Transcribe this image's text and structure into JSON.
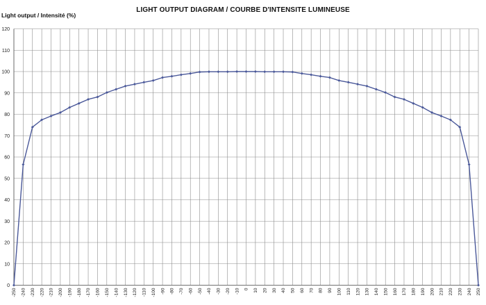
{
  "chart_data": {
    "type": "line",
    "title": "LIGHT OUTPUT DIAGRAM / COURBE D'INTENSITE LUMINEUSE",
    "ylabel": "Light output / Intensité (%)",
    "xlabel": "",
    "ylim": [
      0,
      120
    ],
    "yticks": [
      0,
      10,
      20,
      30,
      40,
      50,
      60,
      70,
      80,
      90,
      100,
      110,
      120
    ],
    "grid": "horizontal and vertical",
    "x": [
      -250,
      -240,
      -230,
      -220,
      -210,
      -200,
      -190,
      -180,
      -170,
      -160,
      -150,
      -140,
      -130,
      -120,
      -110,
      -100,
      -90,
      -80,
      -70,
      -60,
      -50,
      -40,
      -30,
      -20,
      -10,
      0,
      10,
      20,
      30,
      40,
      50,
      60,
      70,
      80,
      90,
      100,
      110,
      120,
      130,
      140,
      150,
      160,
      170,
      180,
      190,
      200,
      210,
      220,
      230,
      240,
      250
    ],
    "series": [
      {
        "values": [
          0,
          56.5,
          74,
          77.4,
          79.2,
          80.8,
          83.2,
          85.1,
          87,
          88.1,
          90.2,
          91.7,
          93.2,
          94.1,
          95,
          95.8,
          97.2,
          97.8,
          98.5,
          99.1,
          99.8,
          99.9,
          99.9,
          99.9,
          100,
          100,
          100,
          99.9,
          99.9,
          99.9,
          99.8,
          99.1,
          98.5,
          97.8,
          97.2,
          95.8,
          95,
          94.1,
          93.2,
          91.7,
          90.2,
          88.1,
          87,
          85.1,
          83.2,
          80.8,
          79.2,
          77.4,
          74,
          56.5,
          0
        ],
        "color": "#4a5899"
      }
    ]
  }
}
